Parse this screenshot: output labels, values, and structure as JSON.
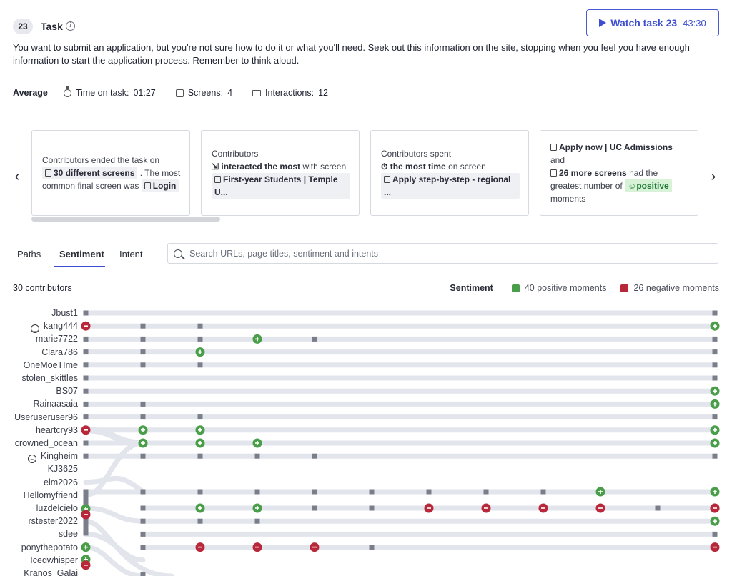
{
  "task": {
    "number": "23",
    "title": "Task",
    "watch_label": "Watch task 23",
    "watch_duration": "43:30",
    "description": "You want to submit an application, but you're not sure how to do it or what you'll need. Seek out this information on the site, stopping when you feel you have enough information to start the application process. Remember to think aloud."
  },
  "average": {
    "label": "Average",
    "time_label": "Time on task:",
    "time_value": "01:27",
    "screens_label": "Screens:",
    "screens_value": "4",
    "interactions_label": "Interactions:",
    "interactions_value": "12"
  },
  "cards": [
    {
      "line1": "Contributors ended the task on",
      "chip1": "30 different screens",
      "line2": ". The most common final screen was",
      "chip2": "Login"
    },
    {
      "line1": "Contributors",
      "chip1": "interacted the most",
      "line2": "with screen",
      "chip2": "First-year Students | Temple U..."
    },
    {
      "line1": "Contributors spent",
      "chip1": "the most time",
      "line2": "on screen",
      "chip2": "Apply step-by-step - regional ..."
    },
    {
      "chip1": "Apply now | UC Admissions",
      "line1": "and",
      "chip2": "26 more screens",
      "line2": "had the greatest number of",
      "chip3": "positive",
      "line3": "moments"
    }
  ],
  "tabs": [
    "Paths",
    "Sentiment",
    "Intent"
  ],
  "search": {
    "placeholder": "Search URLs, page titles, sentiment and intents"
  },
  "contributors_count": "30 contributors",
  "legend": {
    "title": "Sentiment",
    "positive": "40 positive moments",
    "negative": "26 negative moments",
    "positive_color": "#4a9e49",
    "negative_color": "#b8283a"
  },
  "contributors": [
    "Jbust1",
    "kang444",
    "marie7722",
    "Clara786",
    "OneMoeTIme",
    "stolen_skittles",
    "BS07",
    "Rainaasaia",
    "Useruseruser96",
    "heartcry93",
    "crowned_ocean",
    "Kingheim",
    "KJ3625",
    "elm2026",
    "Hellomyfriend",
    "luzdelcielo",
    "rstester2022",
    "sdee",
    "ponythepotato",
    "Icedwhisper",
    "Kranos_Galai"
  ],
  "contributor_faces": {
    "kang444": "smile-icon",
    "Kingheim": "frown-icon"
  }
}
